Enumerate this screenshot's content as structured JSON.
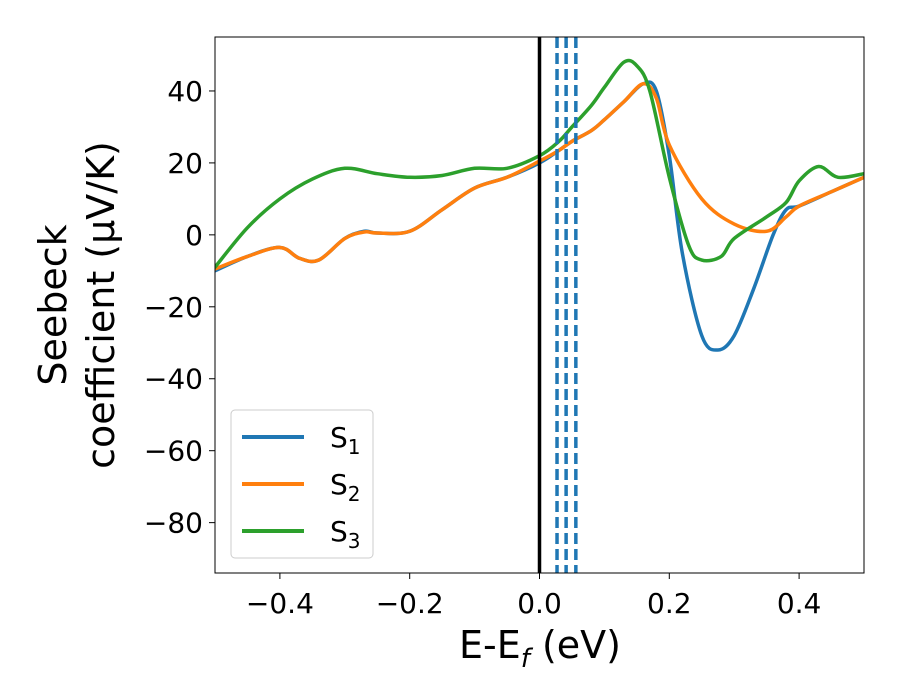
{
  "chart_data": {
    "type": "line",
    "xlabel": {
      "main": "E-E",
      "sub": "f",
      "tail": " (eV)"
    },
    "ylabel": {
      "line1": "Seebeck",
      "line2": "coefficient  (μV/K)"
    },
    "xlim": [
      -0.5,
      0.5
    ],
    "ylim": [
      -94,
      55
    ],
    "xticks": [
      -0.4,
      -0.2,
      0.0,
      0.2,
      0.4
    ],
    "xtick_labels": [
      "−0.4",
      "−0.2",
      "0.0",
      "0.2",
      "0.4"
    ],
    "yticks": [
      40,
      20,
      0,
      -20,
      -40,
      -60,
      -80
    ],
    "ytick_labels": [
      "40",
      "20",
      "0",
      "−20",
      "−40",
      "−60",
      "−80"
    ],
    "grid": false,
    "legend_position": "lower-left",
    "fermi_line": {
      "x": 0.0,
      "color": "#000000"
    },
    "dashed_lines": {
      "x": [
        0.027,
        0.041,
        0.056
      ],
      "color": "#1f77b4"
    },
    "series": [
      {
        "name": "S",
        "sub": "1",
        "color": "#1f77b4",
        "x": [
          -0.5,
          -0.45,
          -0.4,
          -0.37,
          -0.34,
          -0.3,
          -0.27,
          -0.25,
          -0.2,
          -0.15,
          -0.1,
          -0.05,
          0.0,
          0.03,
          0.05,
          0.08,
          0.1,
          0.13,
          0.16,
          0.18,
          0.2,
          0.22,
          0.25,
          0.275,
          0.3,
          0.33,
          0.36,
          0.38,
          0.4,
          0.45,
          0.5
        ],
        "y": [
          -10,
          -6,
          -3.5,
          -6.5,
          -7,
          -1,
          1,
          0.5,
          1,
          7,
          13,
          16,
          20,
          23.5,
          26,
          29,
          32,
          37,
          42,
          40,
          22,
          -5,
          -28,
          -32,
          -28,
          -15,
          0,
          7,
          8,
          12,
          16
        ]
      },
      {
        "name": "S",
        "sub": "2",
        "color": "#ff7f0e",
        "x": [
          -0.5,
          -0.45,
          -0.4,
          -0.37,
          -0.34,
          -0.3,
          -0.27,
          -0.25,
          -0.2,
          -0.15,
          -0.1,
          -0.05,
          0.0,
          0.03,
          0.05,
          0.08,
          0.1,
          0.13,
          0.16,
          0.18,
          0.2,
          0.25,
          0.3,
          0.35,
          0.38,
          0.4,
          0.45,
          0.5
        ],
        "y": [
          -9.5,
          -6,
          -3.5,
          -6.5,
          -7,
          -1,
          0.8,
          0.5,
          1,
          7,
          13,
          16,
          20.5,
          23.5,
          26,
          29,
          32,
          37,
          42,
          38,
          25,
          10,
          3,
          1,
          5,
          8,
          12,
          16
        ]
      },
      {
        "name": "S",
        "sub": "3",
        "color": "#2ca02c",
        "x": [
          -0.5,
          -0.45,
          -0.4,
          -0.35,
          -0.3,
          -0.25,
          -0.2,
          -0.15,
          -0.1,
          -0.05,
          0.0,
          0.03,
          0.05,
          0.08,
          0.1,
          0.13,
          0.15,
          0.17,
          0.2,
          0.23,
          0.25,
          0.28,
          0.3,
          0.35,
          0.38,
          0.4,
          0.43,
          0.46,
          0.5
        ],
        "y": [
          -9,
          2,
          10,
          15.5,
          18.5,
          17,
          16,
          16.5,
          18.5,
          18.5,
          22,
          26,
          30,
          36,
          41,
          48,
          47,
          40,
          16,
          -3,
          -7,
          -6,
          -1,
          5,
          9,
          15,
          19,
          16,
          17
        ]
      }
    ]
  }
}
